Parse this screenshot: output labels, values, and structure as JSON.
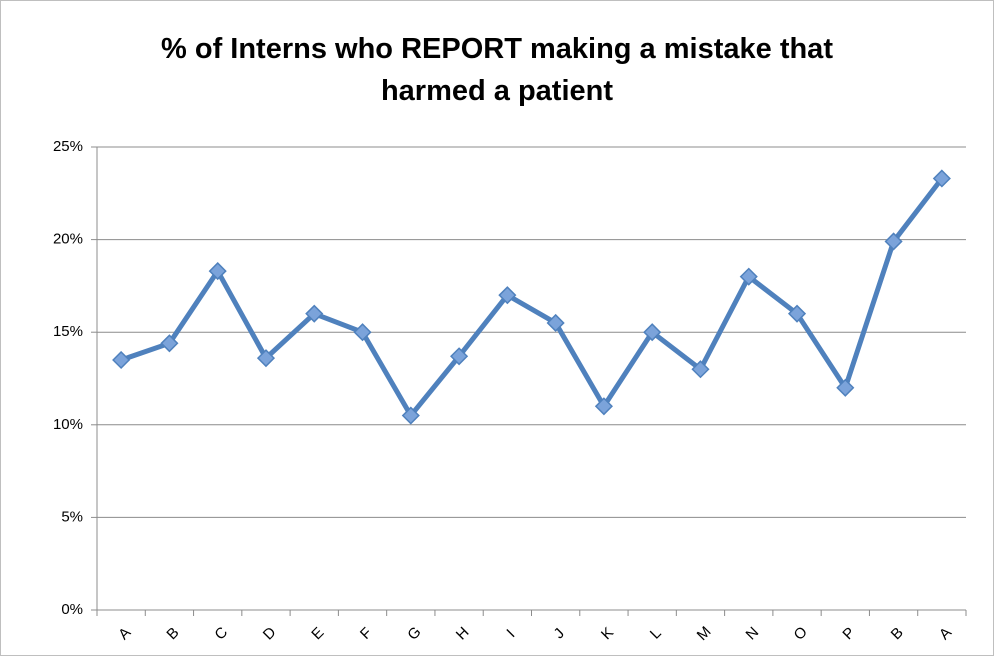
{
  "chart_data": {
    "type": "line",
    "title": "% of Interns who REPORT making a mistake that harmed a patient",
    "categories": [
      "A",
      "B",
      "C",
      "D",
      "E",
      "F",
      "G",
      "H",
      "I",
      "J",
      "K",
      "L",
      "M",
      "N",
      "O",
      "P",
      "B",
      "A"
    ],
    "values": [
      13.5,
      14.4,
      18.3,
      13.6,
      16,
      15,
      10.5,
      13.7,
      17,
      15.5,
      11,
      15,
      13,
      18,
      16,
      12,
      19.9,
      23.3
    ],
    "color": "#4f81bd",
    "ylim": [
      0,
      25
    ],
    "yticks": [
      {
        "value": 0,
        "label": "0%"
      },
      {
        "value": 5,
        "label": "5%"
      },
      {
        "value": 10,
        "label": "10%"
      },
      {
        "value": 15,
        "label": "15%"
      },
      {
        "value": 20,
        "label": "20%"
      },
      {
        "value": 25,
        "label": "25%"
      }
    ],
    "grid": true
  }
}
